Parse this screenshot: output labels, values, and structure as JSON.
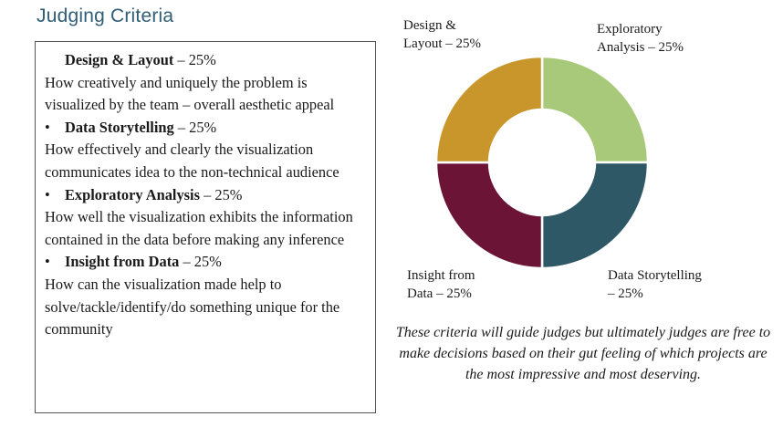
{
  "title": "Judging Criteria",
  "criteria": [
    {
      "bullet": "",
      "name": "Design & Layout",
      "sep": " – ",
      "weight": "25%",
      "description": "How creatively and uniquely the problem is visualized by the team – overall aesthetic appeal"
    },
    {
      "bullet": "•",
      "name": "Data Storytelling",
      "sep": " – ",
      "weight": "25%",
      "description": "How effectively and clearly the visualization communicates idea to the non-technical audience"
    },
    {
      "bullet": "•",
      "name": "Exploratory Analysis",
      "sep": " – ",
      "weight": "25%",
      "description": "How well the visualization exhibits the information contained in the data before making any inference"
    },
    {
      "bullet": "•",
      "name": "Insight from Data",
      "sep": " – ",
      "weight": "25%",
      "description": "How can the visualization made help to solve/tackle/identify/do something unique for the community"
    }
  ],
  "chart_data": {
    "type": "pie",
    "donut": true,
    "legend": "none",
    "slices": [
      {
        "label_lines": [
          "Exploratory",
          "Analysis – 25%"
        ],
        "value": 25,
        "color": "#a8c97a"
      },
      {
        "label_lines": [
          "Data Storytelling",
          "– 25%"
        ],
        "value": 25,
        "color": "#2e5866"
      },
      {
        "label_lines": [
          "Insight from",
          "Data – 25%"
        ],
        "value": 25,
        "color": "#6b1435"
      },
      {
        "label_lines": [
          "Design &",
          "Layout – 25%"
        ],
        "value": 25,
        "color": "#c9962c"
      }
    ]
  },
  "note": "These criteria will guide judges but ultimately judges are free to make decisions based on their gut feeling of which projects are the most impressive and most deserving."
}
